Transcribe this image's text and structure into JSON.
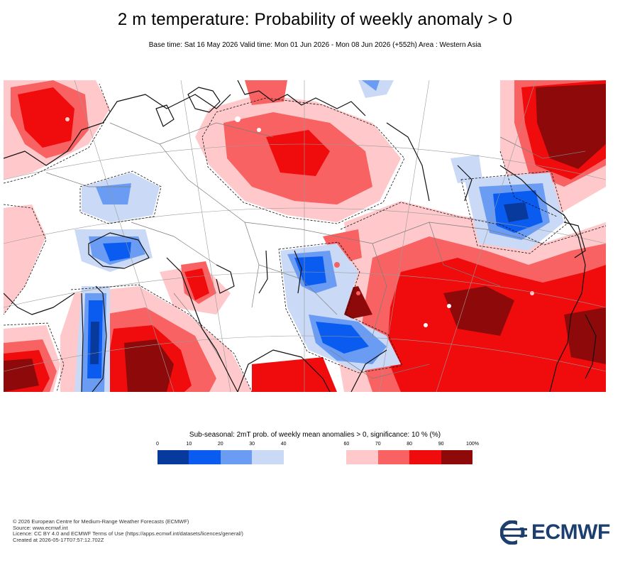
{
  "header": {
    "title": "2 m temperature: Probability of weekly anomaly > 0",
    "subtitle": "Base time: Sat 16 May 2026 Valid time: Mon 01 Jun 2026 - Mon 08 Jun 2026 (+552h) Area : Western Asia"
  },
  "legend": {
    "title": "Sub-seasonal: 2mT prob. of weekly mean anomalies > 0, significance: 10 % (%)",
    "ticks": [
      "0",
      "10",
      "20",
      "30",
      "40",
      "60",
      "70",
      "80",
      "90",
      "100%"
    ],
    "bins": [
      {
        "from": 0,
        "to": 10,
        "color": "#08399c"
      },
      {
        "from": 10,
        "to": 20,
        "color": "#0a5cf0"
      },
      {
        "from": 20,
        "to": 30,
        "color": "#6b9cf4"
      },
      {
        "from": 30,
        "to": 40,
        "color": "#c9d9f6"
      },
      {
        "from": 40,
        "to": 60,
        "color": "#ffffff"
      },
      {
        "from": 60,
        "to": 70,
        "color": "#ffc9cb"
      },
      {
        "from": 70,
        "to": 80,
        "color": "#f86262"
      },
      {
        "from": 80,
        "to": 90,
        "color": "#f00c0c"
      },
      {
        "from": 90,
        "to": 100,
        "color": "#8e0a0a"
      }
    ]
  },
  "footer": {
    "copyright": "© 2026 European Centre for Medium-Range Weather Forecasts (ECMWF)",
    "source": "Source: www.ecmwf.int",
    "licence": "Licence: CC BY 4.0 and ECMWF Terms of Use (https://apps.ecmwf.int/datasets/licences/general/)",
    "created": "Created at 2026-05-17T07:57:12.702Z"
  },
  "logo": {
    "text": "ECMWF",
    "color": "#1d3f6e"
  }
}
